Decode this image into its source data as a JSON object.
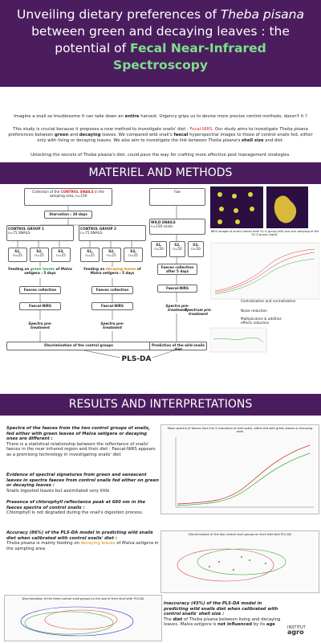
{
  "header": {
    "title": [
      "Unveiling dietary preferences of ",
      "Theba pisana",
      " between green and decaying leaves : the potential of ",
      "Fecal Near-Infrared Spectroscopy"
    ]
  },
  "intro": {
    "p1": [
      "Imagine a snail so troublesome it can take down an ",
      "entire",
      " harvest. Urgency grips us to devise more precise control methods, doesn't it ?"
    ],
    "p2": [
      "This study is crucial because it proposes a new method to investigate snails' diet : ",
      "Fecal-NIRS",
      ". Our study aims to investigate ",
      "Theba pisana",
      " preferences between ",
      "green",
      " and ",
      "decaying",
      " leaves. We compared wild snail's ",
      "faecal",
      " hyperspectral images to those of control snails fed, either only with living or decaying leaves. We also aim to investigate the link between ",
      "Theba pisana's",
      " ",
      "shell size",
      " and diet."
    ],
    "p3": [
      "Unlocking the secrets of Theba pisana's diet, could pave the way for crafting more effective pest management strategies."
    ]
  },
  "sections": [
    "MATERIEL AND METHODS",
    "RESULTS AND INTERPRETATIONS"
  ],
  "methods": {
    "control": {
      "collection": [
        "Collection of the ",
        "CONTROL SNAILS",
        " in the sampling area, n=150"
      ],
      "starvation": "Starvation : 20 days",
      "groups": [
        {
          "name": "CONTROL GROUP 1",
          "n": "n=75 SNAILS",
          "subgroups": [
            [
              "S1,",
              "n=25"
            ],
            [
              "S2,",
              "n=25"
            ],
            [
              "S3,",
              "n=25"
            ]
          ],
          "feeding": [
            "Feeding on ",
            "green leaves",
            " of ",
            "Malva setigera",
            " : 5 days"
          ],
          "collection": "Faeces collection",
          "nirs": "Faecal-NIRS",
          "pretreatment": "Spectra pre-treatment"
        },
        {
          "name": "CONTROL GROUP 2",
          "n": "n=75 SNAILS",
          "subgroups": [
            [
              "S1,",
              "n=25"
            ],
            [
              "S2,",
              "n=25"
            ],
            [
              "S3,",
              "n=25"
            ]
          ],
          "feeding": [
            "Feeding on ",
            "decaying leaves",
            " of ",
            "Malva setigera",
            " : 5 days"
          ],
          "collection": "Faeces collection",
          "nirs": "Faecal-NIRS",
          "pretreatment": "Spectra pre-treatment"
        }
      ],
      "discrimination": "Discrimination of the control groups"
    },
    "model": "PLS-DA",
    "wild": {
      "collection": "Faeces collection after 5 days",
      "name": "WILD SNAILS",
      "n": "n=150 snails",
      "subgroups": [
        [
          "S1,",
          "n=50"
        ],
        [
          "S2,",
          "n=50"
        ],
        [
          "S3,",
          "n=50"
        ]
      ],
      "nirs": "Faecal-NIRS",
      "pretreatment": "Spectra pre-treatment",
      "prediction": "Prediction of the wild snails diet"
    },
    "image_caption": "NIRS images of snail's faeces from S1-G group (left) and one sampling of the S1-G group (right).",
    "pretreatment": {
      "title": "Spectrum pre-treatment",
      "steps": [
        "Centralization and normalization",
        "Noise reduction",
        "Multiplicative & additive effects reduction"
      ]
    }
  },
  "results": [
    {
      "heading": "Spectra of the faeces from the two control groups of snails, fed either with green leaves of Malva setigera or decaying ones are different :",
      "body": "There is a statistical relationship between the reflectance of snails' faeces in the near infrared region and their diet : Faecal-NIRS appears as a promising technology in investigating snails' diet",
      "chart_title": "Mean spectra of faeces from the 3 insecation of wild snails, either fed with green leaves or decaying ones"
    },
    {
      "heading": "Evidence of spectral signatures from green and senescent leaves in spectra faeces from control snails fed either on green or decaying leaves :",
      "body": "Snails ingested leaves but assimilated very little"
    },
    {
      "heading": "Presence of chlorophyll reflectance peak at 680 nm in the faeces spectra of control snails :",
      "body": "Chlorophyll is not degraded during the snail's digestion process."
    },
    {
      "heading": "Accuracy (86%) of the PLS-DA model in predicting wild snails diet when calibrated with control snails' diet :",
      "body": [
        "Theba pisana",
        " is mainly feeding on ",
        "decaying leaves",
        " of ",
        "Malva setigera",
        " in the sampling area"
      ],
      "chart_title": "Discrimination of the two control snail groups on their diet with PLS-DA"
    },
    {
      "heading": "Inaccuracy (45%) of the PLS-DA model in predicting wild snails diet when calibrated with control snails' shell size :",
      "body": [
        "The ",
        "diet",
        " of ",
        "Theba pisana",
        " between living and decaying leaves. ",
        "Malva setigera",
        " is ",
        "not influenced",
        " by its ",
        "age"
      ],
      "chart_title": "Discrimination of the three control snail groups on the size of their shell with PLS-DA"
    }
  ],
  "logo": [
    "INSTITUT",
    "agro"
  ]
}
